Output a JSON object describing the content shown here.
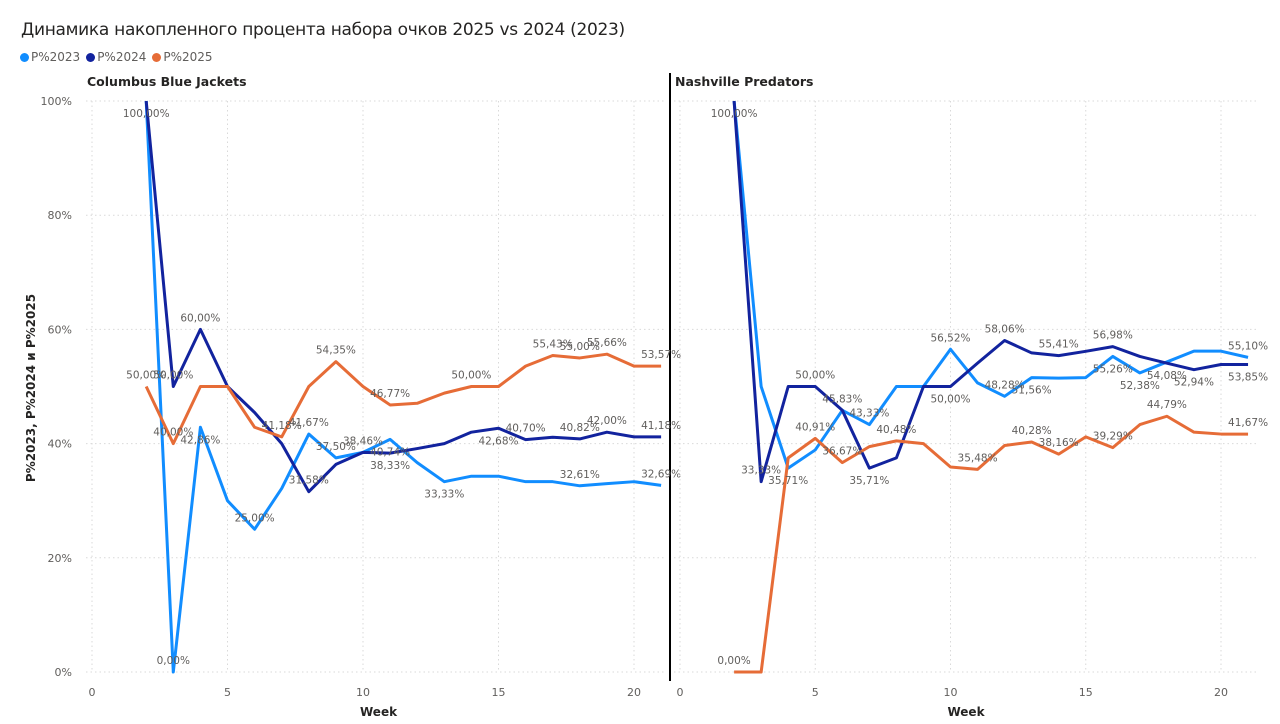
{
  "chart_data": {
    "type": "line",
    "title": "Динамика накопленного процента набора очков 2025 vs 2024 (2023)",
    "legend": {
      "position": "top-left",
      "entries": [
        {
          "name": "P%2023",
          "color": "#118DFF"
        },
        {
          "name": "P%2024",
          "color": "#12239E"
        },
        {
          "name": "P%2025",
          "color": "#E66C37"
        }
      ]
    },
    "ylabel": "P%2023, P%2024 и P%2025",
    "xlabel": "Week",
    "ylim": [
      0,
      100
    ],
    "yticks": [
      0,
      20,
      40,
      60,
      80,
      100
    ],
    "ytick_labels": [
      "0%",
      "20%",
      "40%",
      "60%",
      "80%",
      "100%"
    ],
    "xlim": [
      0,
      21
    ],
    "xticks": [
      0,
      5,
      10,
      15,
      20
    ],
    "xtick_labels": [
      "0",
      "5",
      "10",
      "15",
      "20"
    ],
    "grid": true,
    "x": [
      2,
      3,
      4,
      5,
      6,
      7,
      8,
      9,
      10,
      11,
      12,
      13,
      14,
      15,
      16,
      17,
      18,
      19,
      20,
      21
    ],
    "panels": [
      {
        "name": "Columbus Blue Jackets",
        "series": [
          {
            "name": "P%2023",
            "values": [
              100,
              0,
              42.86,
              30,
              25,
              32.14,
              41.67,
              37.5,
              38.46,
              40.74,
              36.67,
              33.33,
              34.29,
              34.29,
              33.33,
              33.33,
              32.61,
              33.0,
              33.33,
              32.69
            ]
          },
          {
            "name": "P%2024",
            "values": [
              100,
              50,
              60,
              50,
              45.45,
              40.0,
              31.58,
              36.36,
              38.46,
              38.33,
              39.13,
              40.0,
              42.0,
              42.68,
              40.7,
              41.11,
              40.82,
              42.0,
              41.18,
              41.18
            ]
          },
          {
            "name": "P%2025",
            "values": [
              50,
              40,
              50,
              50,
              42.86,
              41.18,
              50,
              54.35,
              50,
              46.77,
              47.06,
              48.84,
              50,
              50,
              53.57,
              55.43,
              55.0,
              55.66,
              53.57,
              53.57
            ]
          }
        ],
        "labels": [
          {
            "series": "P%2024",
            "x": 2,
            "text": "100,00%"
          },
          {
            "series": "P%2023",
            "x": 3,
            "text": "0,00%"
          },
          {
            "series": "P%2024",
            "x": 3,
            "text": "50,00%"
          },
          {
            "series": "P%2025",
            "x": 2,
            "text": "50,00%"
          },
          {
            "series": "P%2025",
            "x": 3,
            "text": "40,00%"
          },
          {
            "series": "P%2024",
            "x": 4,
            "text": "60,00%"
          },
          {
            "series": "P%2023",
            "x": 4,
            "text": "42,86%"
          },
          {
            "series": "P%2023",
            "x": 6,
            "text": "25,00%"
          },
          {
            "series": "P%2025",
            "x": 7,
            "text": "41,18%"
          },
          {
            "series": "P%2023",
            "x": 8,
            "text": "41,67%"
          },
          {
            "series": "P%2024",
            "x": 8,
            "text": "31,58%"
          },
          {
            "series": "P%2025",
            "x": 9,
            "text": "54,35%"
          },
          {
            "series": "P%2023",
            "x": 9,
            "text": "37,50%"
          },
          {
            "series": "P%2023",
            "x": 10,
            "text": "38,46%"
          },
          {
            "series": "P%2025",
            "x": 11,
            "text": "46,77%"
          },
          {
            "series": "P%2023",
            "x": 11,
            "text": "40,74%"
          },
          {
            "series": "P%2024",
            "x": 11,
            "text": "38,33%"
          },
          {
            "series": "P%2023",
            "x": 13,
            "text": "33,33%"
          },
          {
            "series": "P%2025",
            "x": 14,
            "text": "50,00%"
          },
          {
            "series": "P%2024",
            "x": 15,
            "text": "42,68%"
          },
          {
            "series": "P%2024",
            "x": 16,
            "text": "40,70%"
          },
          {
            "series": "P%2025",
            "x": 17,
            "text": "55,43%"
          },
          {
            "series": "P%2025",
            "x": 18,
            "text": "55,00%"
          },
          {
            "series": "P%2024",
            "x": 18,
            "text": "40,82%"
          },
          {
            "series": "P%2023",
            "x": 18,
            "text": "32,61%"
          },
          {
            "series": "P%2025",
            "x": 19,
            "text": "55,66%"
          },
          {
            "series": "P%2024",
            "x": 19,
            "text": "42,00%"
          },
          {
            "series": "P%2025",
            "x": 21,
            "text": "53,57%"
          },
          {
            "series": "P%2024",
            "x": 21,
            "text": "41,18%"
          },
          {
            "series": "P%2023",
            "x": 21,
            "text": "32,69%"
          }
        ]
      },
      {
        "name": "Nashville Predators",
        "series": [
          {
            "name": "P%2023",
            "values": [
              100,
              50,
              35.71,
              38.89,
              45.83,
              43.33,
              50,
              50,
              56.52,
              50.63,
              48.28,
              51.56,
              51.47,
              51.56,
              55.26,
              52.38,
              54.3,
              56.19,
              56.19,
              55.1
            ]
          },
          {
            "name": "P%2024",
            "values": [
              100,
              33.33,
              50,
              50,
              45.83,
              35.71,
              37.5,
              50,
              50,
              54.1,
              58.06,
              55.88,
              55.41,
              56.16,
              56.98,
              55.26,
              54.08,
              52.94,
              53.85,
              53.85
            ]
          },
          {
            "name": "P%2025",
            "values": [
              0,
              0,
              37.5,
              40.91,
              36.67,
              39.47,
              40.48,
              40.0,
              35.9,
              35.48,
              39.66,
              40.28,
              38.16,
              41.18,
              39.29,
              43.33,
              44.79,
              42.0,
              41.67,
              41.67
            ]
          }
        ],
        "labels": [
          {
            "series": "P%2024",
            "x": 2,
            "text": "100,00%"
          },
          {
            "series": "P%2025",
            "x": 2,
            "text": "0,00%"
          },
          {
            "series": "P%2024",
            "x": 3,
            "text": "33,33%"
          },
          {
            "series": "P%2023",
            "x": 4,
            "text": "35,71%"
          },
          {
            "series": "P%2024",
            "x": 5,
            "text": "50,00%"
          },
          {
            "series": "P%2025",
            "x": 5,
            "text": "40,91%"
          },
          {
            "series": "P%2024",
            "x": 6,
            "text": "45,83%"
          },
          {
            "series": "P%2025",
            "x": 6,
            "text": "36,67%"
          },
          {
            "series": "P%2023",
            "x": 7,
            "text": "43,33%"
          },
          {
            "series": "P%2024",
            "x": 7,
            "text": "35,71%"
          },
          {
            "series": "P%2025",
            "x": 8,
            "text": "40,48%"
          },
          {
            "series": "P%2023",
            "x": 10,
            "text": "56,52%"
          },
          {
            "series": "P%2024",
            "x": 10,
            "text": "50,00%"
          },
          {
            "series": "P%2025",
            "x": 11,
            "text": "35,48%"
          },
          {
            "series": "P%2024",
            "x": 12,
            "text": "58,06%"
          },
          {
            "series": "P%2023",
            "x": 12,
            "text": "48,28%"
          },
          {
            "series": "P%2023",
            "x": 13,
            "text": "51,56%"
          },
          {
            "series": "P%2025",
            "x": 13,
            "text": "40,28%"
          },
          {
            "series": "P%2024",
            "x": 14,
            "text": "55,41%"
          },
          {
            "series": "P%2025",
            "x": 14,
            "text": "38,16%"
          },
          {
            "series": "P%2023",
            "x": 16,
            "text": "55,26%"
          },
          {
            "series": "P%2024",
            "x": 16,
            "text": "56,98%"
          },
          {
            "series": "P%2025",
            "x": 16,
            "text": "39,29%"
          },
          {
            "series": "P%2023",
            "x": 17,
            "text": "52,38%"
          },
          {
            "series": "P%2024",
            "x": 18,
            "text": "54,08%"
          },
          {
            "series": "P%2025",
            "x": 18,
            "text": "44,79%"
          },
          {
            "series": "P%2024",
            "x": 19,
            "text": "52,94%"
          },
          {
            "series": "P%2024",
            "x": 21,
            "text": "53,85%"
          },
          {
            "series": "P%2023",
            "x": 21,
            "text": "55,10%"
          },
          {
            "series": "P%2025",
            "x": 21,
            "text": "41,67%"
          }
        ]
      }
    ]
  }
}
